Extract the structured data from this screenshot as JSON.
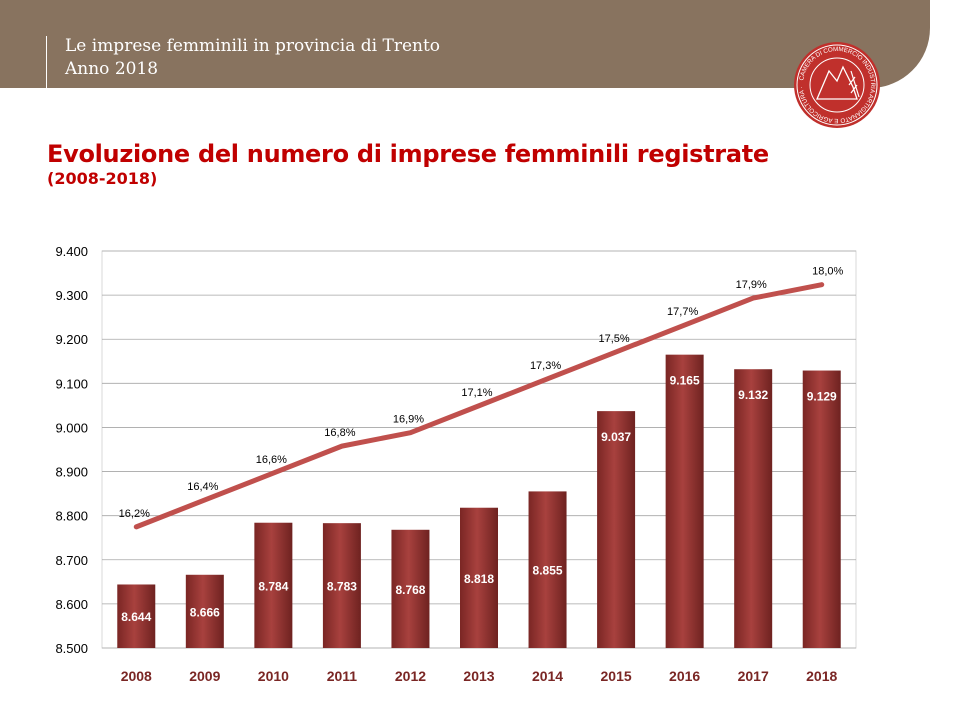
{
  "header": {
    "line1": "Le imprese femminili in provincia di Trento",
    "line2": "Anno 2018"
  },
  "logo": {
    "text": "CAMERA DI COMMERCIO INDUSTRIA ARTIGIANATO E AGRICOLTURA TRENTO",
    "color": "#c0302c"
  },
  "chart_data": {
    "type": "bar",
    "title": "Evoluzione del numero di imprese femminili registrate",
    "subtitle": "(2008-2018)",
    "categories": [
      "2008",
      "2009",
      "2010",
      "2011",
      "2012",
      "2013",
      "2014",
      "2015",
      "2016",
      "2017",
      "2018"
    ],
    "series": [
      {
        "type": "bar",
        "values": [
          8644,
          8666,
          8784,
          8783,
          8768,
          8818,
          8855,
          9037,
          9165,
          9132,
          9129
        ],
        "labels": [
          "8.644",
          "8.666",
          "8.784",
          "8.783",
          "8.768",
          "8.818",
          "8.855",
          "9.037",
          "9.165",
          "9.132",
          "9.129"
        ],
        "color": "#9e3a38"
      },
      {
        "type": "line",
        "axis": "secondary",
        "values": [
          16.2,
          16.4,
          16.6,
          16.8,
          16.9,
          17.1,
          17.3,
          17.5,
          17.7,
          17.9,
          18.0
        ],
        "labels": [
          "16,2%",
          "16,4%",
          "16,6%",
          "16,8%",
          "16,9%",
          "17,1%",
          "17,3%",
          "17,5%",
          "17,7%",
          "17,9%",
          "18,0%"
        ],
        "color": "#c0504d"
      }
    ],
    "ylim": [
      8500,
      9400
    ],
    "yticks": [
      "8.500",
      "8.600",
      "8.700",
      "8.800",
      "8.900",
      "9.000",
      "9.100",
      "9.200",
      "9.300",
      "9.400"
    ],
    "y2lim": [
      15.3,
      18.25
    ],
    "grid": true
  }
}
